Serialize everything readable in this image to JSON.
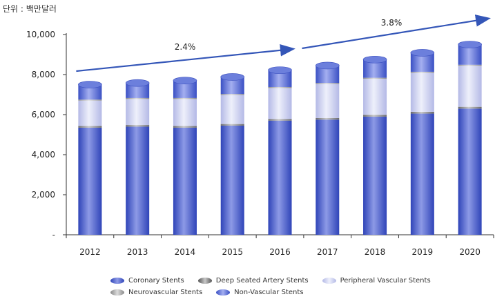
{
  "unit_label": "단위 : 백만달러",
  "chart_data": {
    "type": "bar",
    "stacked": true,
    "categories": [
      "2012",
      "2013",
      "2014",
      "2015",
      "2016",
      "2017",
      "2018",
      "2019",
      "2020"
    ],
    "series": [
      {
        "name": "Coronary Stents",
        "values": [
          5350,
          5400,
          5350,
          5450,
          5700,
          5750,
          5900,
          6050,
          6300
        ],
        "color": "#4a5fcf"
      },
      {
        "name": "Deep Seated Artery Stents",
        "values": [
          80,
          80,
          80,
          80,
          80,
          80,
          90,
          90,
          90
        ],
        "color": "#8a8a8a"
      },
      {
        "name": "Peripheral Vascular Stents",
        "values": [
          1270,
          1300,
          1350,
          1450,
          1550,
          1700,
          1800,
          1950,
          2050
        ],
        "color": "#c6c9ec"
      },
      {
        "name": "Neurovascular Stents",
        "values": [
          50,
          50,
          50,
          50,
          50,
          50,
          50,
          50,
          50
        ],
        "color": "#a8a8a8"
      },
      {
        "name": "Non-Vascular Stents",
        "values": [
          750,
          750,
          870,
          850,
          840,
          870,
          910,
          950,
          1010
        ],
        "color": "#5f73d6"
      }
    ],
    "ylim": [
      0,
      10000
    ],
    "yticks": [
      0,
      2000,
      4000,
      6000,
      8000,
      10000
    ],
    "ytick_labels": [
      "-",
      "2,000",
      "4,000",
      "6,000",
      "8,000",
      "10,000"
    ],
    "annotations": [
      {
        "text": "2.4%",
        "from_index": 0,
        "to_index": 4
      },
      {
        "text": "3.8%",
        "from_index": 4,
        "to_index": 8
      }
    ],
    "legend_position": "bottom",
    "grid": false
  },
  "legend": {
    "row1": [
      "Coronary Stents",
      "Deep Seated Artery Stents",
      "Peripheral Vascular Stents"
    ],
    "row2": [
      "Neurovascular Stents",
      "Non-Vascular Stents"
    ]
  },
  "colors": {
    "arrow": "#3456b8",
    "axis": "#333333"
  }
}
